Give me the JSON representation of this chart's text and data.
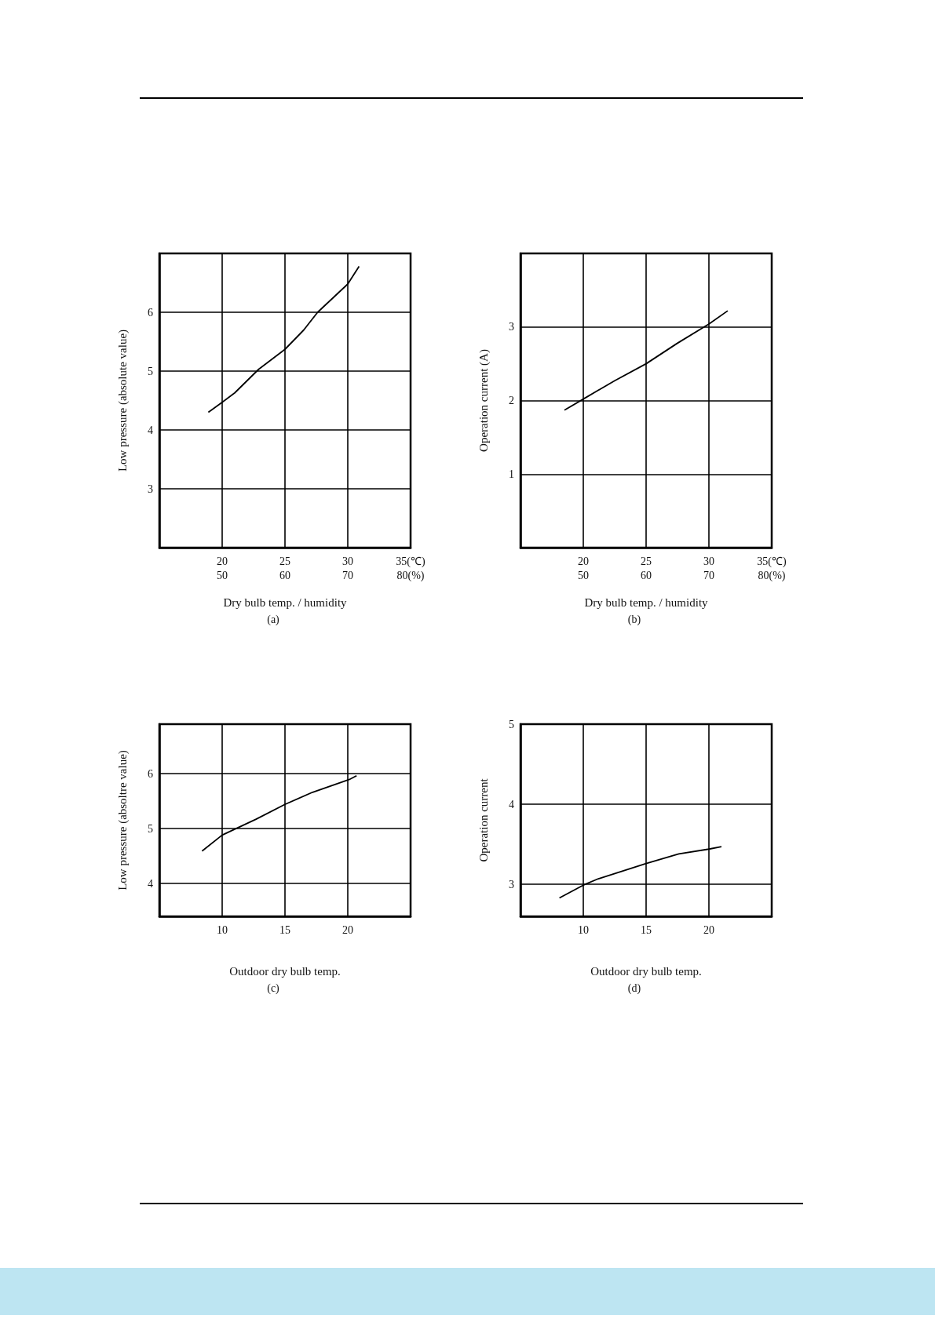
{
  "chart_data": [
    {
      "type": "line",
      "xlabel": "Dry bulb temp. / humidity",
      "ylabel": "Low pressure (absolute value)",
      "annotations": [
        "(a)"
      ],
      "marker": "none",
      "grid": true,
      "xlim": [
        15,
        35
      ],
      "xticks": [
        20,
        25,
        30,
        {
          "value": 35,
          "label": "35(℃)"
        }
      ],
      "x2lim": [
        40,
        80
      ],
      "x2ticks": [
        50,
        60,
        70,
        {
          "value": 80,
          "label": "80(%)"
        }
      ],
      "ylim": [
        2,
        7
      ],
      "yticks": [
        3,
        4,
        5,
        6
      ],
      "series": [
        {
          "color": "#000000",
          "x": [
            18.9,
            20,
            21,
            22.9,
            25,
            26.5,
            27.6,
            30,
            30.9
          ],
          "values": [
            4.3,
            4.47,
            4.63,
            5.03,
            5.37,
            5.7,
            6.0,
            6.48,
            6.78
          ]
        }
      ]
    },
    {
      "type": "line",
      "xlabel": "Dry bulb temp. / humidity",
      "ylabel": "Operation current (A)",
      "annotations": [
        "(b)"
      ],
      "marker": "none",
      "grid": true,
      "xlim": [
        15,
        35
      ],
      "xticks": [
        20,
        25,
        30,
        {
          "value": 35,
          "label": "35(℃)"
        }
      ],
      "x2lim": [
        40,
        80
      ],
      "x2ticks": [
        50,
        60,
        70,
        {
          "value": 80,
          "label": "80(%)"
        }
      ],
      "ylim": [
        0,
        4
      ],
      "yticks": [
        1,
        2,
        3
      ],
      "series": [
        {
          "color": "#000000",
          "x": [
            18.5,
            20,
            22.5,
            25,
            27.5,
            30,
            31.5
          ],
          "values": [
            1.87,
            2.02,
            2.27,
            2.5,
            2.78,
            3.04,
            3.22
          ]
        }
      ]
    },
    {
      "type": "line",
      "xlabel": "Outdoor dry bulb temp.",
      "ylabel": "Low pressure (absoltre value)",
      "annotations": [
        "(c)"
      ],
      "marker": "none",
      "grid": true,
      "xlim": [
        5,
        25
      ],
      "xticks": [
        10,
        15,
        20
      ],
      "ylim": [
        3.4,
        6.9
      ],
      "yticks": [
        4,
        5,
        6
      ],
      "series": [
        {
          "color": "#000000",
          "x": [
            8.4,
            10,
            12.7,
            15,
            17.2,
            20.1,
            20.7
          ],
          "values": [
            4.59,
            4.88,
            5.17,
            5.44,
            5.66,
            5.89,
            5.96
          ]
        }
      ]
    },
    {
      "type": "line",
      "xlabel": "Outdoor dry bulb temp.",
      "ylabel": "Operation current",
      "annotations": [
        "(d)"
      ],
      "marker": "none",
      "grid": true,
      "xlim": [
        5,
        25
      ],
      "xticks": [
        10,
        15,
        20
      ],
      "ylim": [
        2.6,
        5
      ],
      "yticks": [
        3,
        4,
        5
      ],
      "series": [
        {
          "color": "#000000",
          "x": [
            8.1,
            10,
            11.2,
            15,
            17.6,
            20,
            21
          ],
          "values": [
            2.83,
            2.99,
            3.07,
            3.26,
            3.38,
            3.44,
            3.47
          ]
        }
      ]
    }
  ]
}
